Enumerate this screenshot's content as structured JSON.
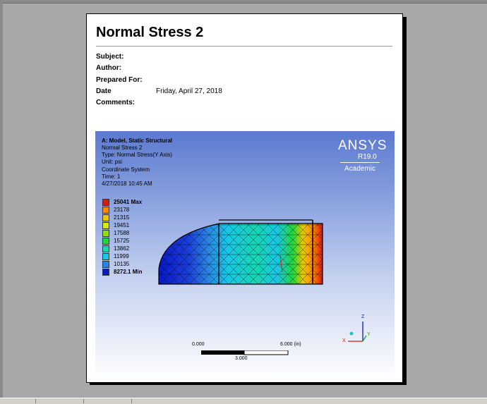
{
  "report": {
    "title": "Normal Stress 2",
    "fields": [
      {
        "label": "Subject:",
        "value": ""
      },
      {
        "label": "Author:",
        "value": ""
      },
      {
        "label": "Prepared For:",
        "value": ""
      },
      {
        "label": "Date",
        "value": "Friday, April 27, 2018"
      },
      {
        "label": "Comments:",
        "value": ""
      }
    ]
  },
  "viewport": {
    "header_title": "A: Model, Static Structural",
    "lines": [
      "Normal Stress 2",
      "Type: Normal Stress(Y Axis)",
      "Unit: psi",
      "Coordinate System",
      "Time: 1",
      "4/27/2018 10:45 AM"
    ],
    "logo": {
      "name": "ANSYS",
      "version": "R19.0",
      "edition": "Academic"
    },
    "legend": [
      {
        "label": "25041 Max",
        "color": "#d81a10"
      },
      {
        "label": "23178",
        "color": "#ff8a00"
      },
      {
        "label": "21315",
        "color": "#e8c800"
      },
      {
        "label": "19451",
        "color": "#d8ec00"
      },
      {
        "label": "17588",
        "color": "#8fe000"
      },
      {
        "label": "15725",
        "color": "#22d63c"
      },
      {
        "label": "13862",
        "color": "#17d6b3"
      },
      {
        "label": "11999",
        "color": "#18c7e6"
      },
      {
        "label": "10135",
        "color": "#2a84e0"
      },
      {
        "label": "8272.1 Min",
        "color": "#0a18c8"
      }
    ],
    "scale_bar": {
      "left": "0.000",
      "right": "6.000 (in)",
      "mid": "3.000"
    },
    "triad": {
      "x": "X",
      "y": "Y",
      "z": "Z"
    }
  }
}
